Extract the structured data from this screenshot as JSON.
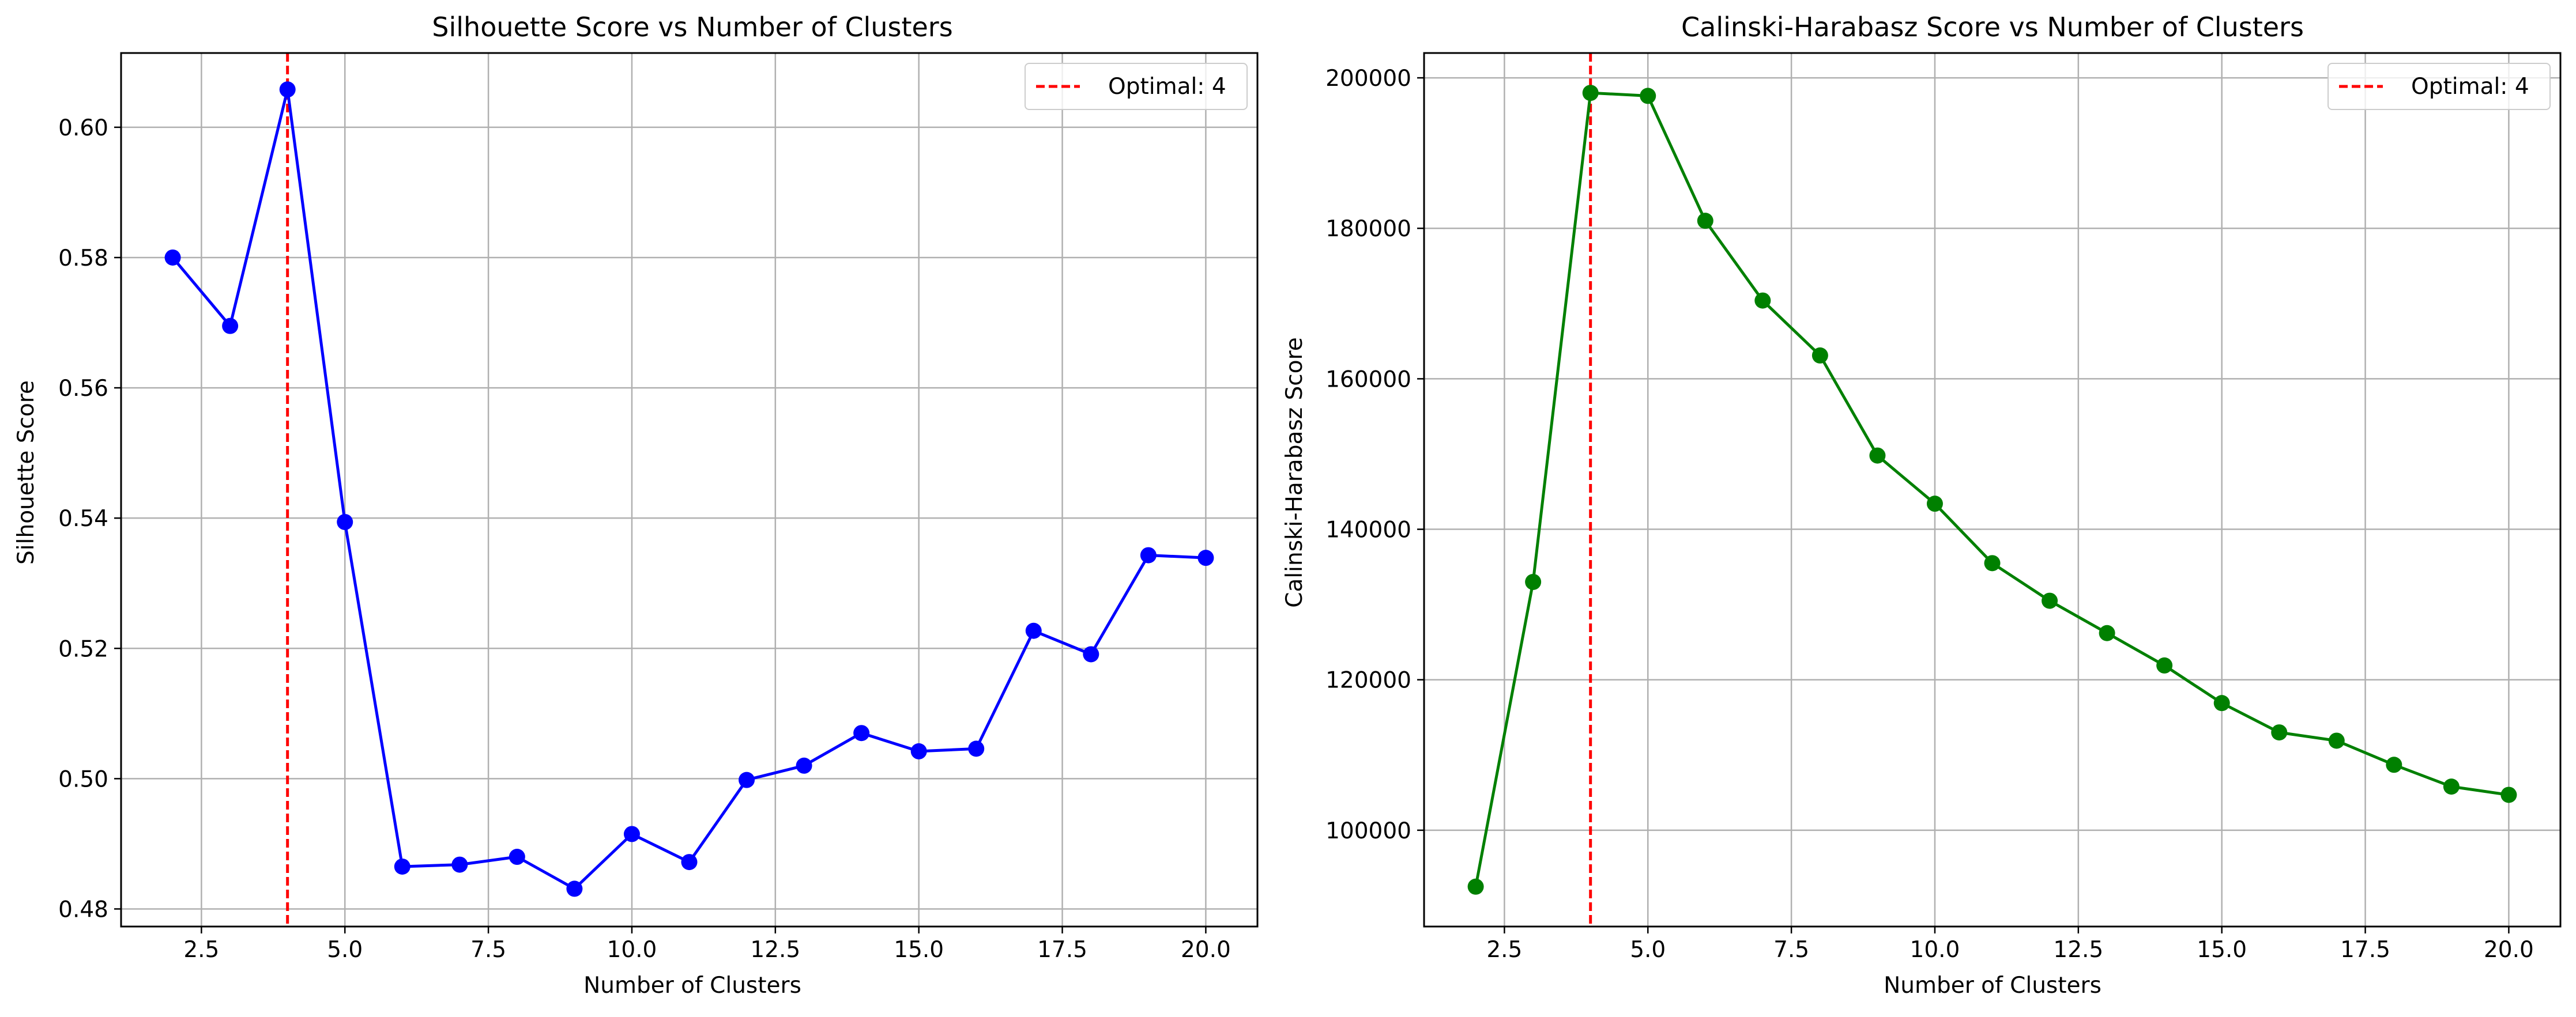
{
  "chart_data": [
    {
      "type": "line",
      "title": "Silhouette Score vs Number of Clusters",
      "xlabel": "Number of Clusters",
      "ylabel": "Silhouette Score",
      "xlim": [
        1.1,
        20.9
      ],
      "ylim": [
        0.4773,
        0.6114
      ],
      "xticks": [
        2.5,
        5.0,
        7.5,
        10.0,
        12.5,
        15.0,
        17.5,
        20.0
      ],
      "xtick_labels": [
        "2.5",
        "5.0",
        "7.5",
        "10.0",
        "12.5",
        "15.0",
        "17.5",
        "20.0"
      ],
      "yticks": [
        0.48,
        0.5,
        0.52,
        0.54,
        0.56,
        0.58,
        0.6
      ],
      "ytick_labels": [
        "0.48",
        "0.50",
        "0.52",
        "0.54",
        "0.56",
        "0.58",
        "0.60"
      ],
      "grid": true,
      "legend_position": "top-right",
      "series": [
        {
          "color": "#0000ff",
          "marker": "circle",
          "x": [
            2,
            3,
            4,
            5,
            6,
            7,
            8,
            9,
            10,
            11,
            12,
            13,
            14,
            15,
            16,
            17,
            18,
            19,
            20
          ],
          "y": [
            0.58,
            0.5695,
            0.6058,
            0.5394,
            0.4865,
            0.4868,
            0.488,
            0.4831,
            0.4915,
            0.4872,
            0.4998,
            0.502,
            0.507,
            0.5042,
            0.5046,
            0.5227,
            0.5191,
            0.5343,
            0.5339
          ]
        }
      ],
      "reference_line": {
        "x": 4,
        "label": "Optimal: 4",
        "color": "#ff0000",
        "style": "dashed"
      }
    },
    {
      "type": "line",
      "title": "Calinski-Harabasz Score vs Number of Clusters",
      "xlabel": "Number of Clusters",
      "ylabel": "Calinski-Harabasz Score",
      "xlim": [
        1.1,
        20.9
      ],
      "ylim": [
        87200,
        203300
      ],
      "xticks": [
        2.5,
        5.0,
        7.5,
        10.0,
        12.5,
        15.0,
        17.5,
        20.0
      ],
      "xtick_labels": [
        "2.5",
        "5.0",
        "7.5",
        "10.0",
        "12.5",
        "15.0",
        "17.5",
        "20.0"
      ],
      "yticks": [
        100000,
        120000,
        140000,
        160000,
        180000,
        200000
      ],
      "ytick_labels": [
        "100000",
        "120000",
        "140000",
        "160000",
        "180000",
        "200000"
      ],
      "grid": true,
      "legend_position": "top-right",
      "series": [
        {
          "color": "#008000",
          "marker": "circle",
          "x": [
            2,
            3,
            4,
            5,
            6,
            7,
            8,
            9,
            10,
            11,
            12,
            13,
            14,
            15,
            16,
            17,
            18,
            19,
            20
          ],
          "y": [
            92500,
            133000,
            198000,
            197600,
            181000,
            170400,
            163100,
            149800,
            143400,
            135500,
            130500,
            126200,
            121900,
            116900,
            113000,
            111900,
            108700,
            105800,
            104700
          ]
        }
      ],
      "reference_line": {
        "x": 4,
        "label": "Optimal: 4",
        "color": "#ff0000",
        "style": "dashed"
      }
    }
  ]
}
